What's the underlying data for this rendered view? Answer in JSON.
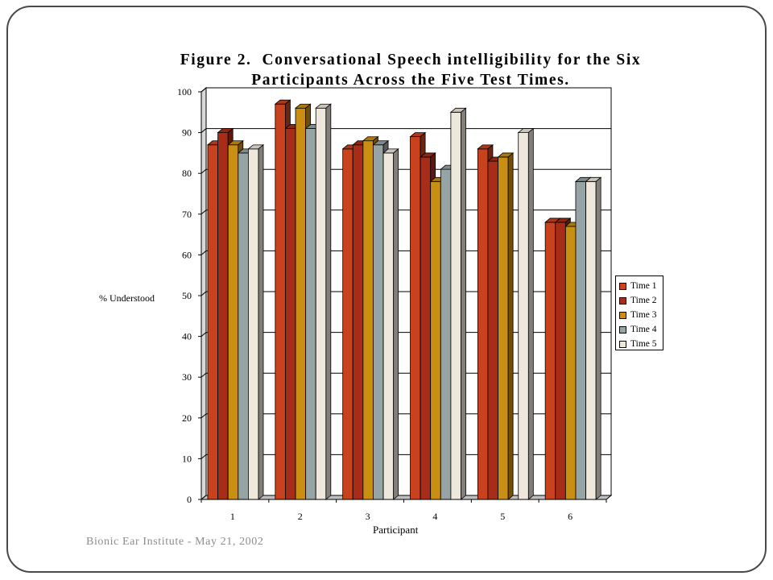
{
  "footer": "Bionic Ear Institute - May 21, 2002",
  "colors": {
    "time1": "#C8421E",
    "time2": "#A82D18",
    "time3": "#C98F12",
    "time4": "#96A4A6",
    "time5": "#EEE7DB"
  },
  "chart_data": {
    "type": "bar",
    "title_lines": [
      "Figure 2.  Conversational Speech intelligibility for the Six",
      "Participants Across the Five Test Times."
    ],
    "xlabel": "Participant",
    "ylabel": "% Understood",
    "ylim": [
      0,
      100
    ],
    "yticks": [
      0,
      10,
      20,
      30,
      40,
      50,
      60,
      70,
      80,
      90,
      100
    ],
    "grid": true,
    "legend_position": "right",
    "categories": [
      "1",
      "2",
      "3",
      "4",
      "5",
      "6"
    ],
    "series": [
      {
        "name": "Time 1",
        "color_key": "time1",
        "values": [
          87,
          97,
          86,
          89,
          86,
          68
        ]
      },
      {
        "name": "Time 2",
        "color_key": "time2",
        "values": [
          90,
          91,
          87,
          84,
          83,
          68
        ]
      },
      {
        "name": "Time 3",
        "color_key": "time3",
        "values": [
          87,
          96,
          88,
          78,
          84,
          67
        ]
      },
      {
        "name": "Time 4",
        "color_key": "time4",
        "values": [
          85,
          91,
          87,
          81,
          0,
          78
        ]
      },
      {
        "name": "Time 5",
        "color_key": "time5",
        "values": [
          86,
          96,
          85,
          95,
          90,
          78
        ]
      }
    ]
  }
}
